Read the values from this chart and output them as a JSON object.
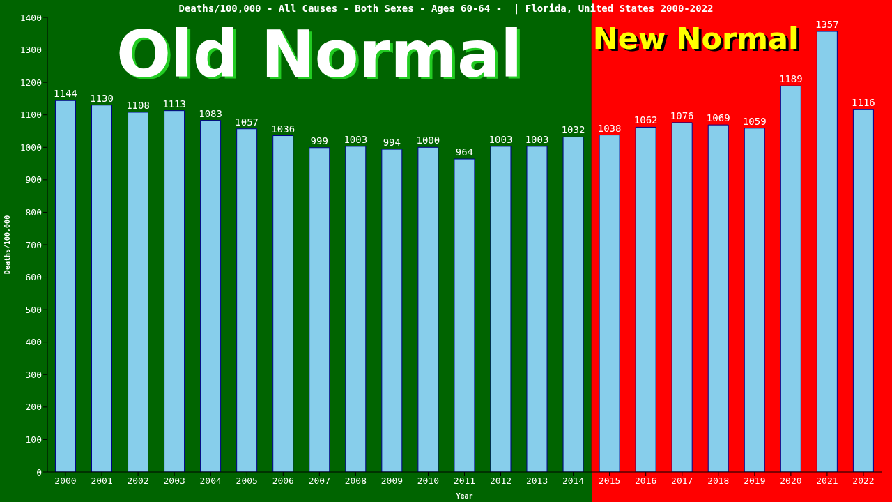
{
  "chart_data": {
    "type": "bar",
    "title": "Deaths/100,000 - All Causes - Both Sexes - Ages 60-64 -  | Florida, United States 2000-2022",
    "xlabel": "Year",
    "ylabel": "Deaths/100,000",
    "categories": [
      "2000",
      "2001",
      "2002",
      "2003",
      "2004",
      "2005",
      "2006",
      "2007",
      "2008",
      "2009",
      "2010",
      "2011",
      "2012",
      "2013",
      "2014",
      "2015",
      "2016",
      "2017",
      "2018",
      "2019",
      "2020",
      "2021",
      "2022"
    ],
    "values": [
      1144,
      1130,
      1108,
      1113,
      1083,
      1057,
      1036,
      999,
      1003,
      994,
      1000,
      964,
      1003,
      1003,
      1032,
      1038,
      1062,
      1076,
      1069,
      1059,
      1189,
      1357,
      1116
    ],
    "color": "#87ceeb",
    "ylim": [
      0,
      1400
    ],
    "yticks": [
      0,
      100,
      200,
      300,
      400,
      500,
      600,
      700,
      800,
      900,
      1000,
      1100,
      1200,
      1300,
      1400
    ],
    "grid": false,
    "data_labels": true,
    "bands": [
      {
        "axis": "x",
        "from": "2000",
        "to": "2014",
        "label": "Old Normal",
        "color": "#006400"
      },
      {
        "axis": "x",
        "from": "2015",
        "to": "2022",
        "label": "New Normal",
        "color": "#ff0000"
      }
    ]
  }
}
